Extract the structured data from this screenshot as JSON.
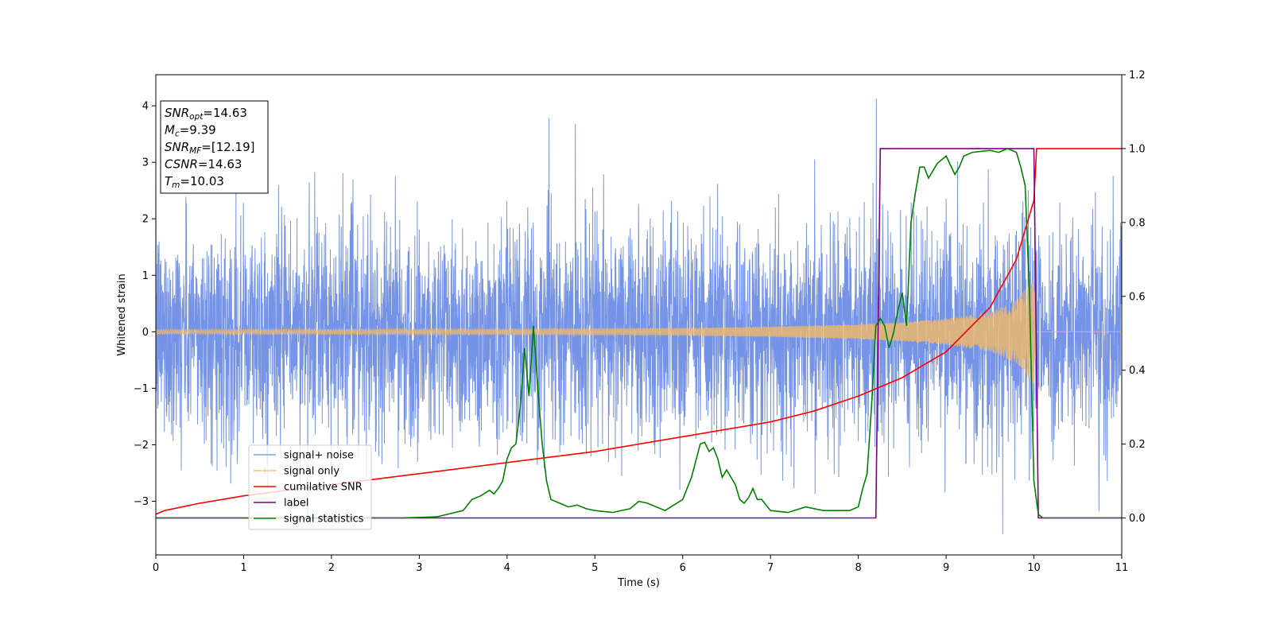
{
  "chart_data": {
    "type": "line",
    "xlabel": "Time (s)",
    "ylabel": "Whitened strain",
    "xlim": [
      0,
      11
    ],
    "ylim_left": [
      -3.95,
      4.55
    ],
    "ylim_right": [
      -0.1,
      1.2
    ],
    "xticks": [
      0,
      1,
      2,
      3,
      4,
      5,
      6,
      7,
      8,
      9,
      10,
      11
    ],
    "yticks_left": [
      -3,
      -2,
      -1,
      0,
      1,
      2,
      3,
      4
    ],
    "yticks_right": [
      0.0,
      0.2,
      0.4,
      0.6,
      0.8,
      1.0,
      1.2
    ],
    "legend_position": "lower-left",
    "info_box": {
      "lines": [
        {
          "sym": "SNR",
          "sub": "opt",
          "text": "=14.63"
        },
        {
          "sym": "M",
          "sub": "c",
          "text": "=9.39"
        },
        {
          "sym": "SNR",
          "sub": "MF",
          "text": "=[12.19]"
        },
        {
          "sym": "CSNR",
          "sub": "",
          "text": "=14.63"
        },
        {
          "sym": "T",
          "sub": "m",
          "text": "=10.03"
        }
      ]
    },
    "series": [
      {
        "name": "signal+ noise",
        "axis": "left",
        "color": "#6f8ee6",
        "description_values": {
          "mean": 0,
          "approx_std": 0.95,
          "range": [
            -3.5,
            4.2
          ]
        }
      },
      {
        "name": "signal only",
        "axis": "left",
        "color": "#f3b968",
        "envelope": {
          "t": [
            0,
            2,
            4,
            6,
            7,
            8,
            8.5,
            9,
            9.5,
            9.8,
            10.0,
            10.03,
            11
          ],
          "amp": [
            0.04,
            0.045,
            0.05,
            0.065,
            0.09,
            0.13,
            0.17,
            0.23,
            0.35,
            0.55,
            0.95,
            0.0,
            0.0
          ]
        }
      },
      {
        "name": "cumilative SNR",
        "axis": "right",
        "color": "#ff0000",
        "x": [
          0,
          0.1,
          0.5,
          1,
          2,
          3,
          4,
          5,
          6,
          7,
          7.5,
          8,
          8.5,
          9,
          9.5,
          9.8,
          10.0,
          10.03,
          10.04,
          11
        ],
        "y": [
          0.01,
          0.02,
          0.04,
          0.06,
          0.09,
          0.12,
          0.15,
          0.18,
          0.22,
          0.26,
          0.29,
          0.33,
          0.38,
          0.45,
          0.57,
          0.7,
          0.86,
          1.0,
          1.0,
          1.0
        ]
      },
      {
        "name": "label",
        "axis": "right",
        "color": "#800080",
        "x": [
          0,
          8.2,
          8.25,
          10.0,
          10.05,
          11
        ],
        "y": [
          0,
          0,
          1,
          1,
          0,
          0
        ]
      },
      {
        "name": "signal statistics",
        "axis": "right",
        "color": "#008000",
        "x": [
          0,
          2.8,
          3.2,
          3.5,
          3.6,
          3.7,
          3.8,
          3.85,
          3.9,
          3.95,
          4.0,
          4.05,
          4.1,
          4.15,
          4.2,
          4.25,
          4.3,
          4.35,
          4.4,
          4.45,
          4.5,
          4.6,
          4.7,
          4.8,
          4.9,
          5.0,
          5.2,
          5.4,
          5.5,
          5.6,
          5.8,
          6.0,
          6.1,
          6.2,
          6.25,
          6.3,
          6.35,
          6.4,
          6.45,
          6.5,
          6.55,
          6.6,
          6.65,
          6.7,
          6.75,
          6.8,
          6.85,
          6.9,
          7.0,
          7.2,
          7.4,
          7.6,
          7.9,
          8.0,
          8.05,
          8.1,
          8.15,
          8.2,
          8.25,
          8.3,
          8.35,
          8.4,
          8.45,
          8.5,
          8.55,
          8.6,
          8.65,
          8.7,
          8.75,
          8.8,
          8.85,
          8.9,
          9.0,
          9.1,
          9.15,
          9.2,
          9.3,
          9.5,
          9.6,
          9.7,
          9.8,
          9.85,
          9.9,
          9.95,
          10.0,
          10.05,
          10.1,
          11
        ],
        "y": [
          0,
          0,
          0.003,
          0.02,
          0.05,
          0.06,
          0.075,
          0.065,
          0.08,
          0.1,
          0.16,
          0.19,
          0.2,
          0.3,
          0.46,
          0.33,
          0.52,
          0.35,
          0.2,
          0.1,
          0.05,
          0.04,
          0.03,
          0.035,
          0.025,
          0.02,
          0.015,
          0.025,
          0.045,
          0.04,
          0.02,
          0.05,
          0.11,
          0.2,
          0.205,
          0.18,
          0.19,
          0.16,
          0.11,
          0.13,
          0.11,
          0.09,
          0.05,
          0.04,
          0.055,
          0.08,
          0.05,
          0.05,
          0.02,
          0.015,
          0.03,
          0.02,
          0.02,
          0.03,
          0.08,
          0.12,
          0.3,
          0.52,
          0.54,
          0.52,
          0.46,
          0.5,
          0.56,
          0.61,
          0.52,
          0.8,
          0.88,
          0.95,
          0.95,
          0.92,
          0.94,
          0.96,
          0.98,
          0.93,
          0.95,
          0.98,
          0.99,
          0.995,
          0.99,
          1.0,
          0.99,
          0.95,
          0.9,
          0.6,
          0.1,
          0.01,
          0.0,
          0.0
        ]
      }
    ]
  }
}
